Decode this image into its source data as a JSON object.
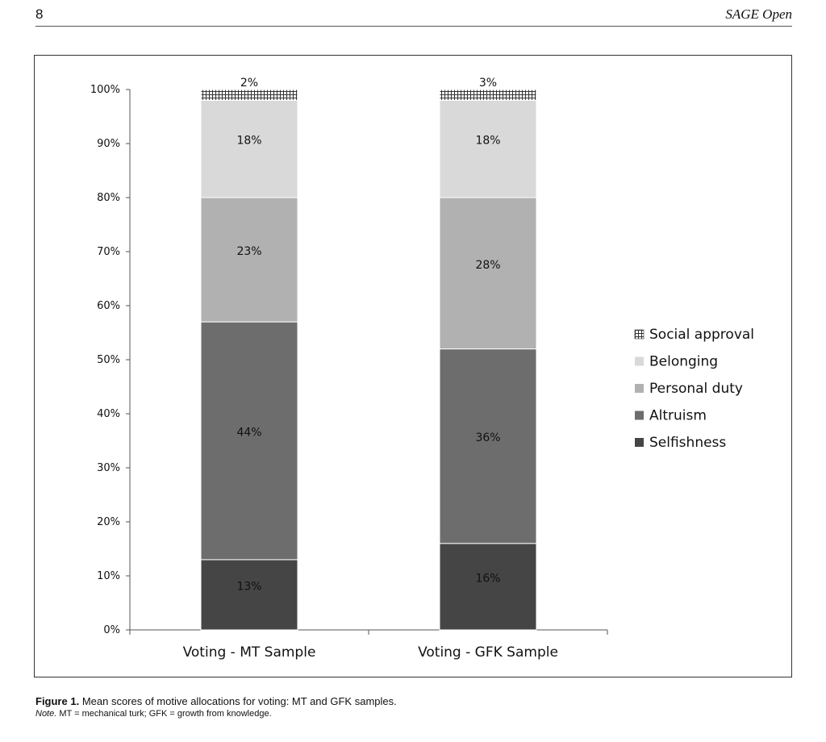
{
  "running_head": {
    "page_number": "8",
    "journal": "SAGE Open"
  },
  "chart_data": {
    "type": "bar",
    "stacked": true,
    "categories": [
      "Voting - MT Sample",
      "Voting - GFK Sample"
    ],
    "series": [
      {
        "name": "Selfishness",
        "values": [
          13,
          16
        ],
        "labels": [
          "13%",
          "16%"
        ],
        "color": "#454545"
      },
      {
        "name": "Altruism",
        "values": [
          44,
          36
        ],
        "labels": [
          "44%",
          "36%"
        ],
        "color": "#6d6d6d"
      },
      {
        "name": "Personal duty",
        "values": [
          23,
          28
        ],
        "labels": [
          "23%",
          "28%"
        ],
        "color": "#b1b1b1"
      },
      {
        "name": "Belonging",
        "values": [
          18,
          18
        ],
        "labels": [
          "18%",
          "18%"
        ],
        "color": "#d9d9d9"
      },
      {
        "name": "Social approval",
        "values": [
          2,
          3
        ],
        "labels": [
          "2%",
          "3%"
        ],
        "color": "#ffffff",
        "pattern": "grid"
      }
    ],
    "y_ticks": [
      "0%",
      "10%",
      "20%",
      "30%",
      "40%",
      "50%",
      "60%",
      "70%",
      "80%",
      "90%",
      "100%"
    ],
    "ylim": [
      0,
      100
    ],
    "grid": false,
    "legend_position": "right"
  },
  "caption": {
    "figure_label": "Figure 1.",
    "figure_text": "Mean scores of motive allocations for voting: MT and GFK samples.",
    "note_label": "Note.",
    "note_text": "MT = mechanical turk; GFK = growth from knowledge."
  }
}
